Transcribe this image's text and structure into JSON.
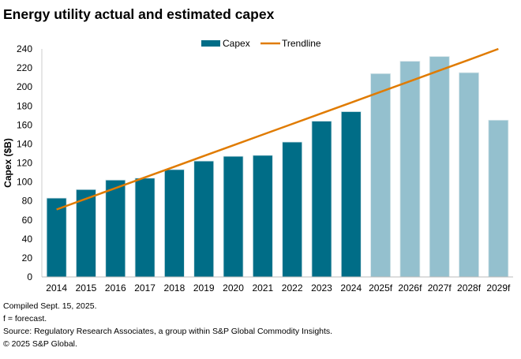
{
  "chart_data": {
    "type": "bar",
    "title": "Energy utility actual and estimated capex",
    "ylabel": "Capex ($B)",
    "xlabel": "",
    "ylim": [
      0,
      240
    ],
    "yticks": [
      0,
      20,
      40,
      60,
      80,
      100,
      120,
      140,
      160,
      180,
      200,
      220,
      240
    ],
    "grid": false,
    "legend_placement": "top",
    "categories": [
      "2014",
      "2015",
      "2016",
      "2017",
      "2018",
      "2019",
      "2020",
      "2021",
      "2022",
      "2023",
      "2024",
      "2025f",
      "2026f",
      "2027f",
      "2028f",
      "2029f"
    ],
    "series": [
      {
        "name": "Capex",
        "type": "bar",
        "values": [
          83,
          92,
          102,
          104,
          113,
          122,
          127,
          128,
          142,
          164,
          174,
          214,
          227,
          232,
          215,
          165
        ],
        "color": "#006d87",
        "forecast_color": "#94c0ce"
      },
      {
        "name": "Trendline",
        "type": "line",
        "values": [
          71,
          82.3,
          93.5,
          104.8,
          116,
          127.3,
          138.5,
          149.8,
          161,
          172.3,
          183.5,
          194.8,
          206,
          217.3,
          228.5,
          240
        ],
        "color": "#e07b00"
      }
    ]
  },
  "footnotes": [
    "Compiled Sept. 15, 2025.",
    "f = forecast.",
    "Source: Regulatory Research Associates, a group within S&P Global Commodity Insights.",
    "© 2025 S&P Global."
  ]
}
